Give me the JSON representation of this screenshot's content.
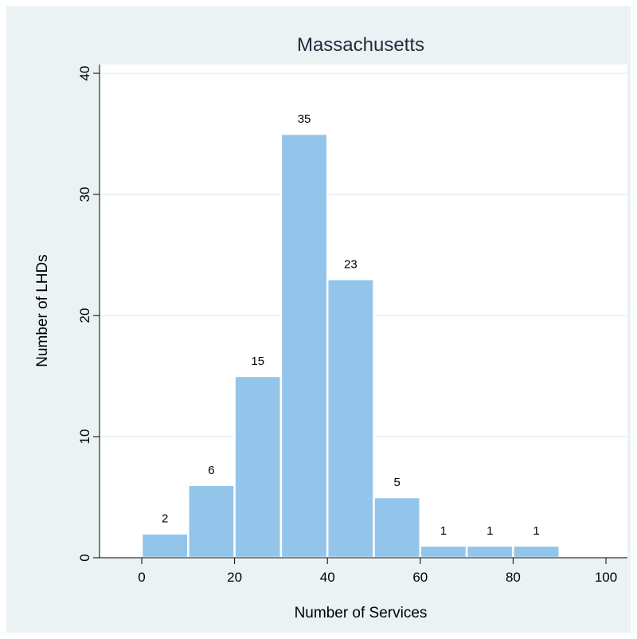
{
  "chart_data": {
    "type": "bar",
    "title": "Massachusetts",
    "xlabel": "Number of Services",
    "ylabel": "Number of LHDs",
    "bin_width": 10,
    "bins": [
      {
        "start": 0,
        "end": 10,
        "value": 2
      },
      {
        "start": 10,
        "end": 20,
        "value": 6
      },
      {
        "start": 20,
        "end": 30,
        "value": 15
      },
      {
        "start": 30,
        "end": 40,
        "value": 35
      },
      {
        "start": 40,
        "end": 50,
        "value": 23
      },
      {
        "start": 50,
        "end": 60,
        "value": 5
      },
      {
        "start": 60,
        "end": 70,
        "value": 1
      },
      {
        "start": 70,
        "end": 80,
        "value": 1
      },
      {
        "start": 80,
        "end": 90,
        "value": 1
      }
    ],
    "xlim": [
      -10,
      103
    ],
    "ylim": [
      0,
      40
    ],
    "xticks": [
      0,
      20,
      40,
      60,
      80,
      100
    ],
    "yticks": [
      0,
      10,
      20,
      30,
      40
    ],
    "grid": true,
    "data_labels": true,
    "colors": {
      "bar": "#93c5ea",
      "bar_edge": "#ffffff",
      "background": "#eaf2f3",
      "plot_background": "#ffffff",
      "grid": "#e6f0f2"
    }
  }
}
